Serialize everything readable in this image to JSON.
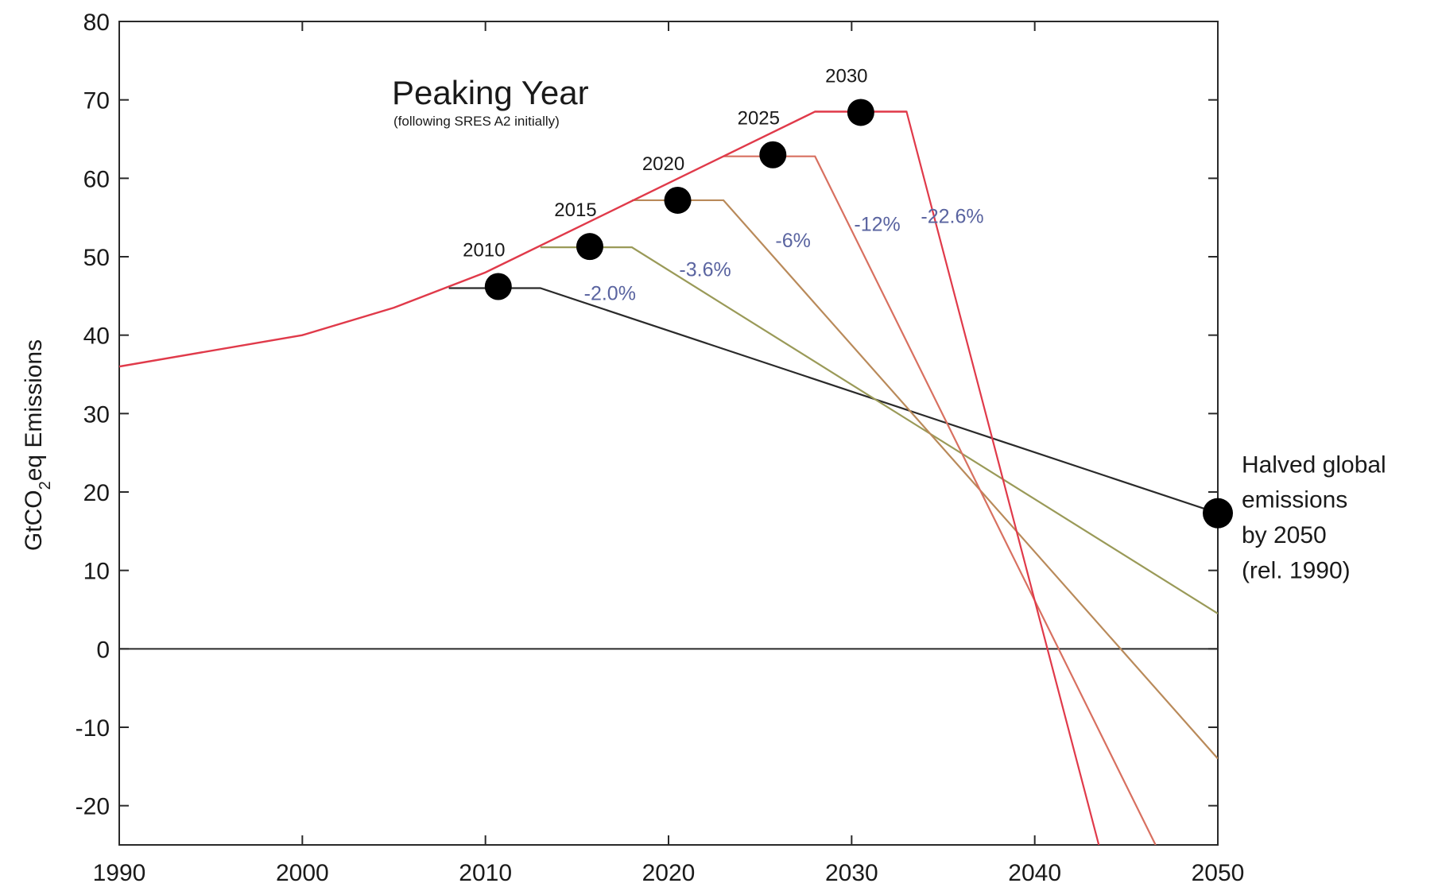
{
  "chart_data": {
    "type": "line",
    "title": "Peaking Year",
    "subtitle": "(following SRES A2 initially)",
    "ylabel_main": "GtCO",
    "ylabel_sub": "2",
    "ylabel_rest": "eq Emissions",
    "xlabel": "",
    "xlim": [
      1990,
      2050
    ],
    "ylim": [
      -25,
      80
    ],
    "x_ticks": [
      "1990",
      "2000",
      "2010",
      "2020",
      "2030",
      "2040",
      "2050"
    ],
    "y_ticks": [
      "80",
      "70",
      "60",
      "50",
      "40",
      "30",
      "20",
      "10",
      "0",
      "-10",
      "-20"
    ],
    "grid": false,
    "baseline": {
      "name": "SRES A2",
      "color": "#e03a4a",
      "x": [
        1990,
        2000,
        2005,
        2010,
        2028,
        2033
      ],
      "y": [
        36,
        40,
        43.5,
        48,
        68.5,
        68.5
      ]
    },
    "series": [
      {
        "name": "2010",
        "color": "#2a2a2a",
        "x": [
          2008,
          2013,
          2050
        ],
        "y": [
          46,
          46,
          17.3
        ]
      },
      {
        "name": "2015",
        "color": "#9a9a58",
        "x": [
          2013,
          2018,
          2050
        ],
        "y": [
          51.2,
          51.2,
          4.5
        ]
      },
      {
        "name": "2020",
        "color": "#b98a5a",
        "x": [
          2018,
          2023,
          2050
        ],
        "y": [
          57.2,
          57.2,
          -14
        ]
      },
      {
        "name": "2025",
        "color": "#d87060",
        "x": [
          2023,
          2028,
          2046.6
        ],
        "y": [
          62.8,
          62.8,
          -25
        ]
      },
      {
        "name": "2030",
        "color": "#e03a4a",
        "x": [
          2028,
          2033,
          2043.5
        ],
        "y": [
          68.5,
          68.5,
          -25
        ]
      }
    ],
    "peak_markers": [
      {
        "label": "2010",
        "x": 2010.7,
        "y": 46.2
      },
      {
        "label": "2015",
        "x": 2015.7,
        "y": 51.3
      },
      {
        "label": "2020",
        "x": 2020.5,
        "y": 57.2
      },
      {
        "label": "2025",
        "x": 2025.7,
        "y": 63.0
      },
      {
        "label": "2030",
        "x": 2030.5,
        "y": 68.4
      }
    ],
    "rate_labels": [
      {
        "text": "-2.0%",
        "x": 2016.8,
        "y": 44.5
      },
      {
        "text": "-3.6%",
        "x": 2022.0,
        "y": 47.5
      },
      {
        "text": "-6%",
        "x": 2026.8,
        "y": 51.2
      },
      {
        "text": "-12%",
        "x": 2031.4,
        "y": 53.3
      },
      {
        "text": "-22.6%",
        "x": 2035.5,
        "y": 54.3
      }
    ],
    "end_marker": {
      "x": 2050,
      "y": 17.3
    },
    "annotation": [
      "Halved global",
      "emissions",
      "by 2050",
      "(rel. 1990)"
    ],
    "annotation_x": 2051.3,
    "annotation_y": [
      22.5,
      18.0,
      13.5,
      9.0
    ]
  }
}
